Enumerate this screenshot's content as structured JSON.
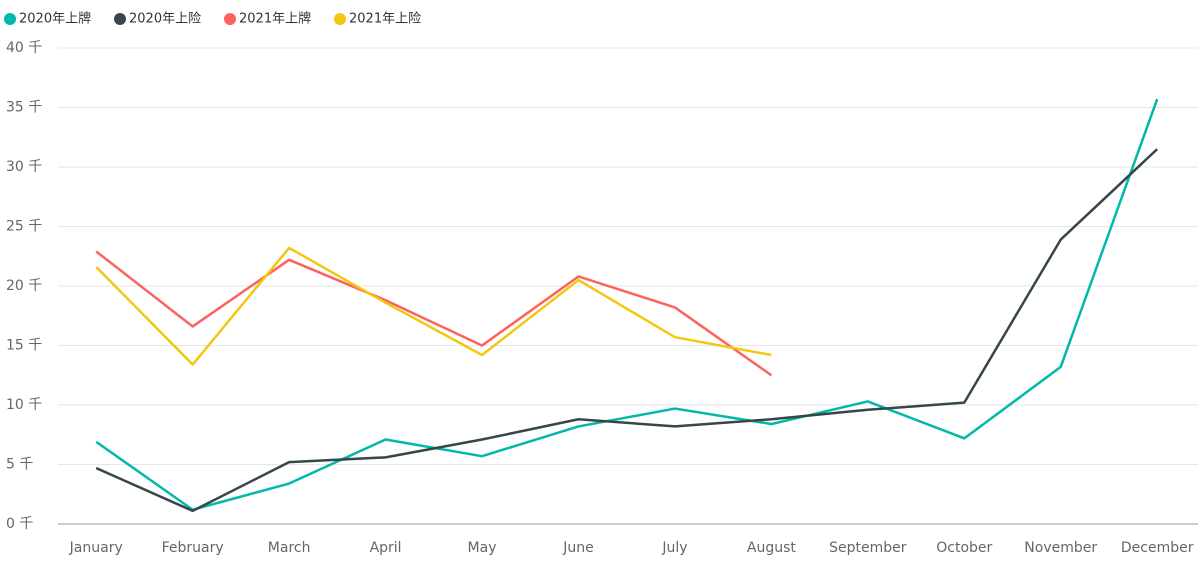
{
  "chart_data": {
    "type": "line",
    "categories": [
      "January",
      "February",
      "March",
      "April",
      "May",
      "June",
      "July",
      "August",
      "September",
      "October",
      "November",
      "December"
    ],
    "series": [
      {
        "name": "2020年上牌",
        "color": "#01B8AA",
        "values": [
          6900,
          1200,
          3400,
          7100,
          5700,
          8200,
          9700,
          8400,
          10300,
          7200,
          13200,
          35700
        ]
      },
      {
        "name": "2020年上险",
        "color": "#374649",
        "values": [
          4700,
          1100,
          5200,
          5600,
          7100,
          8800,
          8200,
          8800,
          9600,
          10200,
          23900,
          31500
        ]
      },
      {
        "name": "2021年上牌",
        "color": "#FD625E",
        "values": [
          22900,
          16600,
          22200,
          18800,
          15000,
          20800,
          18200,
          12500,
          null,
          null,
          null,
          null
        ]
      },
      {
        "name": "2021年上险",
        "color": "#F2C80F",
        "values": [
          21600,
          13400,
          23200,
          18600,
          14200,
          20500,
          15700,
          14200,
          null,
          null,
          null,
          null
        ]
      }
    ],
    "ylim": [
      0,
      40000
    ],
    "yticks": [
      {
        "value": 0,
        "label": "0 千"
      },
      {
        "value": 5000,
        "label": "5 千"
      },
      {
        "value": 10000,
        "label": "10 千"
      },
      {
        "value": 15000,
        "label": "15 千"
      },
      {
        "value": 20000,
        "label": "20 千"
      },
      {
        "value": 25000,
        "label": "25 千"
      },
      {
        "value": 30000,
        "label": "30 千"
      },
      {
        "value": 35000,
        "label": "35 千"
      },
      {
        "value": 40000,
        "label": "40 千"
      }
    ],
    "grid": true
  }
}
